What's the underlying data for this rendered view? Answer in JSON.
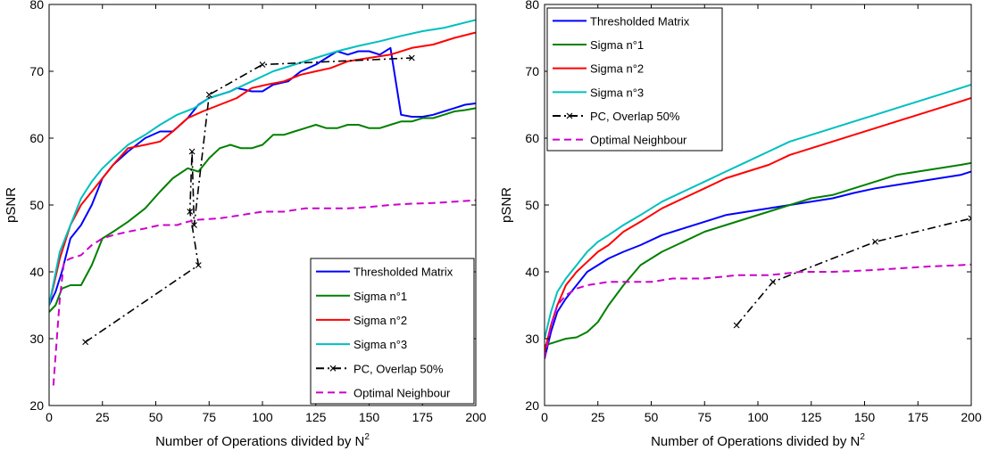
{
  "chart_data": [
    {
      "type": "line",
      "xlabel": "Number of Operations divided by N",
      "xlabel_sup": "2",
      "ylabel": "pSNR",
      "xlim": [
        0,
        200
      ],
      "ylim": [
        20,
        80
      ],
      "xticks": [
        "0",
        "25",
        "50",
        "75",
        "100",
        "125",
        "150",
        "175",
        "200"
      ],
      "yticks": [
        "20",
        "30",
        "40",
        "50",
        "60",
        "70",
        "80"
      ],
      "legend_position": "bottom-right",
      "series": [
        {
          "name": "Thresholded Matrix",
          "color": "#0000ff",
          "dash": "solid",
          "marker": "none",
          "x": [
            0,
            3,
            6,
            10,
            15,
            20,
            25,
            30,
            37,
            45,
            52,
            58,
            65,
            70,
            75,
            80,
            85,
            88,
            95,
            100,
            105,
            112,
            118,
            125,
            130,
            135,
            140,
            145,
            150,
            155,
            160,
            165,
            170,
            175,
            180,
            185,
            190,
            195,
            200
          ],
          "y": [
            35,
            37,
            40,
            45,
            47,
            50,
            54,
            56,
            58,
            60,
            61,
            61,
            63,
            65,
            66,
            66.5,
            67,
            67.5,
            67,
            67,
            68,
            68.5,
            70,
            71,
            72,
            73,
            72.5,
            73,
            73,
            72.5,
            73.5,
            63.5,
            63.2,
            63.2,
            63.5,
            64,
            64.5,
            65,
            65.2
          ]
        },
        {
          "name": "Sigma n°1",
          "color": "#008000",
          "dash": "solid",
          "marker": "none",
          "x": [
            0,
            3,
            6,
            10,
            15,
            20,
            25,
            30,
            37,
            45,
            52,
            58,
            65,
            70,
            75,
            80,
            85,
            90,
            95,
            100,
            105,
            110,
            115,
            120,
            125,
            130,
            135,
            140,
            145,
            150,
            155,
            160,
            165,
            170,
            175,
            180,
            185,
            190,
            195,
            200
          ],
          "y": [
            34,
            35,
            37.5,
            38,
            38,
            41,
            45,
            46,
            47.5,
            49.5,
            52,
            54,
            55.5,
            55,
            57,
            58.5,
            59,
            58.5,
            58.5,
            59,
            60.5,
            60.5,
            61,
            61.5,
            62,
            61.5,
            61.5,
            62,
            62,
            61.5,
            61.5,
            62,
            62.5,
            62.5,
            63,
            63,
            63.5,
            64,
            64.2,
            64.5
          ]
        },
        {
          "name": "Sigma n°2",
          "color": "#ff0000",
          "dash": "solid",
          "marker": "none",
          "x": [
            0,
            5,
            10,
            15,
            20,
            25,
            30,
            37,
            45,
            52,
            58,
            65,
            72,
            80,
            88,
            95,
            102,
            110,
            118,
            125,
            132,
            140,
            150,
            160,
            170,
            180,
            190,
            200
          ],
          "y": [
            35,
            42,
            47,
            50,
            52,
            54,
            56,
            58.5,
            59,
            59.5,
            61,
            63,
            64,
            65,
            66,
            67.5,
            68,
            68.5,
            69.5,
            70,
            70.5,
            71.5,
            72,
            72.5,
            73.5,
            74,
            75,
            75.8
          ]
        },
        {
          "name": "Sigma n°3",
          "color": "#00bfbf",
          "dash": "solid",
          "marker": "none",
          "x": [
            0,
            5,
            10,
            15,
            20,
            25,
            30,
            37,
            45,
            52,
            60,
            68,
            75,
            85,
            95,
            105,
            115,
            125,
            135,
            145,
            155,
            165,
            175,
            185,
            195,
            200
          ],
          "y": [
            35,
            43,
            47,
            51,
            53.5,
            55.5,
            57,
            59,
            60.5,
            62,
            63.5,
            64.5,
            66,
            67,
            68.5,
            70,
            71,
            72,
            73,
            73.8,
            74.5,
            75.3,
            76,
            76.5,
            77.3,
            77.7
          ]
        },
        {
          "name": "PC, Overlap 50%",
          "color": "#000000",
          "dash": "dashdot",
          "marker": "x",
          "x": [
            17,
            70,
            66,
            67,
            68,
            75,
            100,
            170
          ],
          "y": [
            29.5,
            41,
            49,
            58,
            47,
            66.5,
            71,
            72
          ]
        },
        {
          "name": "Optimal Neighbour",
          "color": "#cc00cc",
          "dash": "dashed",
          "marker": "none",
          "x": [
            2,
            5,
            7,
            10,
            15,
            20,
            25,
            30,
            37,
            45,
            52,
            60,
            65,
            70,
            80,
            90,
            100,
            110,
            120,
            130,
            140,
            150,
            160,
            170,
            180,
            190,
            200
          ],
          "y": [
            23,
            36,
            41.5,
            42,
            42.5,
            44,
            45,
            45.5,
            46,
            46.5,
            47,
            47,
            47.5,
            47.8,
            48,
            48.5,
            49,
            49,
            49.5,
            49.5,
            49.5,
            49.7,
            50,
            50.2,
            50.3,
            50.5,
            50.7
          ]
        }
      ]
    },
    {
      "type": "line",
      "xlabel": "Number of Operations divided by N",
      "xlabel_sup": "2",
      "ylabel": "pSNR",
      "xlim": [
        0,
        200
      ],
      "ylim": [
        20,
        80
      ],
      "xticks": [
        "0",
        "25",
        "50",
        "75",
        "100",
        "125",
        "150",
        "175",
        "200"
      ],
      "yticks": [
        "20",
        "30",
        "40",
        "50",
        "60",
        "70",
        "80"
      ],
      "legend_position": "top-left",
      "series": [
        {
          "name": "Thresholded Matrix",
          "color": "#0000ff",
          "dash": "solid",
          "marker": "none",
          "x": [
            0,
            3,
            6,
            10,
            15,
            20,
            25,
            30,
            37,
            45,
            55,
            65,
            75,
            85,
            95,
            105,
            115,
            125,
            135,
            145,
            155,
            165,
            175,
            185,
            195,
            200
          ],
          "y": [
            27,
            31,
            34,
            36,
            38,
            40,
            41,
            42,
            43,
            44,
            45.5,
            46.5,
            47.5,
            48.5,
            49,
            49.5,
            50,
            50.5,
            51,
            51.8,
            52.5,
            53,
            53.5,
            54,
            54.5,
            55
          ]
        },
        {
          "name": "Sigma n°1",
          "color": "#008000",
          "dash": "solid",
          "marker": "none",
          "x": [
            0,
            5,
            10,
            15,
            20,
            25,
            30,
            37,
            45,
            55,
            65,
            75,
            85,
            95,
            105,
            115,
            125,
            135,
            145,
            155,
            165,
            175,
            185,
            195,
            200
          ],
          "y": [
            29,
            29.5,
            30,
            30.2,
            31,
            32.5,
            35,
            38,
            41,
            43,
            44.5,
            46,
            47,
            48,
            49,
            50,
            51,
            51.5,
            52.5,
            53.5,
            54.5,
            55,
            55.5,
            56,
            56.3
          ]
        },
        {
          "name": "Sigma n°2",
          "color": "#ff0000",
          "dash": "solid",
          "marker": "none",
          "x": [
            0,
            3,
            6,
            10,
            15,
            20,
            25,
            30,
            37,
            45,
            55,
            65,
            75,
            85,
            95,
            105,
            115,
            125,
            135,
            145,
            155,
            165,
            175,
            185,
            195,
            200
          ],
          "y": [
            28,
            32,
            35,
            38,
            40,
            41.5,
            43,
            44,
            46,
            47.5,
            49.5,
            51,
            52.5,
            54,
            55,
            56,
            57.5,
            58.5,
            59.5,
            60.5,
            61.5,
            62.5,
            63.5,
            64.5,
            65.5,
            66
          ]
        },
        {
          "name": "Sigma n°3",
          "color": "#00bfbf",
          "dash": "solid",
          "marker": "none",
          "x": [
            0,
            3,
            6,
            10,
            15,
            20,
            25,
            30,
            37,
            45,
            55,
            65,
            75,
            85,
            95,
            105,
            115,
            125,
            135,
            145,
            155,
            165,
            175,
            185,
            195,
            200
          ],
          "y": [
            30,
            34,
            37,
            39,
            41,
            43,
            44.5,
            45.5,
            47,
            48.5,
            50.5,
            52,
            53.5,
            55,
            56.5,
            58,
            59.5,
            60.5,
            61.5,
            62.5,
            63.5,
            64.5,
            65.5,
            66.5,
            67.5,
            68
          ]
        },
        {
          "name": "PC, Overlap 50%",
          "color": "#000000",
          "dash": "dashdot",
          "marker": "x",
          "x": [
            90,
            107,
            155,
            200
          ],
          "y": [
            32,
            38.5,
            44.5,
            48
          ]
        },
        {
          "name": "Optimal Neighbour",
          "color": "#cc00cc",
          "dash": "dashed",
          "marker": "none",
          "x": [
            0,
            3,
            6,
            10,
            15,
            20,
            30,
            40,
            50,
            60,
            75,
            90,
            105,
            120,
            135,
            150,
            165,
            180,
            195,
            200
          ],
          "y": [
            27,
            32,
            35,
            36.5,
            37.5,
            38,
            38.5,
            38.5,
            38.5,
            39,
            39,
            39.5,
            39.5,
            40,
            40,
            40.2,
            40.5,
            40.8,
            41,
            41.1
          ]
        }
      ]
    }
  ]
}
